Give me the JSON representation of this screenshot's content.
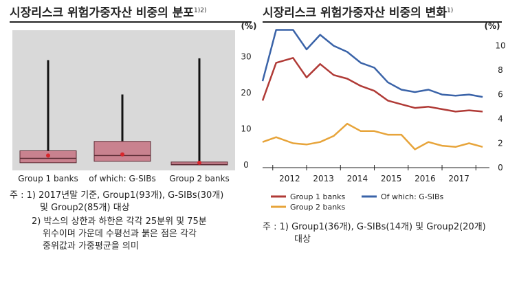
{
  "left_panel": {
    "title": "시장리스크 위험가중자산 비중의 분포",
    "title_sup": "1)2)",
    "notes": [
      "주 : 1) 2017년말 기준, Group1(93개), G-SIBs(30개)",
      "및 Group2(85개) 대상",
      "2) 박스의 상한과 하한은 각각 25분위 및 75분",
      "위수이며 가운데 수평선과 붉은 점은 각각",
      "중위값과 가중평균을 의미"
    ]
  },
  "right_panel": {
    "title": "시장리스크 위험가중자산 비중의 변화",
    "title_sup": "1)",
    "notes": [
      "주 : 1) Group1(36개), G-SIBs(14개) 및 Group2(20개)",
      "대상"
    ]
  },
  "chart_data": [
    {
      "type": "box",
      "unit": "(%)",
      "ylim": [
        0,
        35
      ],
      "yticks": [
        0,
        10,
        20,
        30
      ],
      "grid": false,
      "colors": {
        "box": "#c9828f",
        "box_border": "#5a2a33",
        "whisker": "#111111",
        "mean_dot": "#d9262c",
        "panel_bg": "#d9d9d9"
      },
      "categories": [
        "Group 1 banks",
        "of which: G-SIBs",
        "Group 2 banks"
      ],
      "boxes": [
        {
          "min": 0,
          "q1": 0.6,
          "median": 1.8,
          "q3": 3.9,
          "max": 29.0,
          "mean": 2.6
        },
        {
          "min": 0,
          "q1": 1.0,
          "median": 2.6,
          "q3": 6.5,
          "max": 19.5,
          "mean": 2.9
        },
        {
          "min": 0,
          "q1": 0,
          "median": 0.1,
          "q3": 0.8,
          "max": 29.5,
          "mean": 0.6
        }
      ]
    },
    {
      "type": "line",
      "unit": "(%)",
      "ylim": [
        0,
        11.5
      ],
      "yticks": [
        0,
        2,
        4,
        6,
        8,
        10
      ],
      "xticks": [
        "2012",
        "2013",
        "2014",
        "2015",
        "2016",
        "2017"
      ],
      "xlim": [
        2011.2,
        2017.9
      ],
      "grid": false,
      "legend": "bottom",
      "series": [
        {
          "name": "Group 1 banks",
          "color": "#b03a36",
          "x": [
            2011.2,
            2011.6,
            2012.1,
            2012.5,
            2012.9,
            2013.3,
            2013.7,
            2014.1,
            2014.5,
            2014.9,
            2015.3,
            2015.7,
            2016.1,
            2016.5,
            2016.9,
            2017.3,
            2017.7
          ],
          "values": [
            5.5,
            8.6,
            9.0,
            7.4,
            8.5,
            7.6,
            7.3,
            6.7,
            6.3,
            5.5,
            5.2,
            4.9,
            5.0,
            4.8,
            4.6,
            4.7,
            4.6
          ]
        },
        {
          "name": "Of which: G-SIBs",
          "color": "#3a63a8",
          "x": [
            2011.2,
            2011.6,
            2012.1,
            2012.5,
            2012.9,
            2013.3,
            2013.7,
            2014.1,
            2014.5,
            2014.9,
            2015.3,
            2015.7,
            2016.1,
            2016.5,
            2016.9,
            2017.3,
            2017.7
          ],
          "values": [
            7.1,
            11.3,
            11.3,
            9.7,
            10.9,
            10.0,
            9.5,
            8.6,
            8.2,
            7.0,
            6.4,
            6.2,
            6.4,
            6.0,
            5.9,
            6.0,
            5.8
          ]
        },
        {
          "name": "Group 2 banks",
          "color": "#e7a43a",
          "x": [
            2011.2,
            2011.6,
            2012.1,
            2012.5,
            2012.9,
            2013.3,
            2013.7,
            2014.1,
            2014.5,
            2014.9,
            2015.3,
            2015.7,
            2016.1,
            2016.5,
            2016.9,
            2017.3,
            2017.7
          ],
          "values": [
            2.1,
            2.5,
            2.0,
            1.9,
            2.1,
            2.6,
            3.6,
            3.0,
            3.0,
            2.7,
            2.7,
            1.5,
            2.1,
            1.8,
            1.7,
            2.0,
            1.7
          ]
        }
      ]
    }
  ]
}
